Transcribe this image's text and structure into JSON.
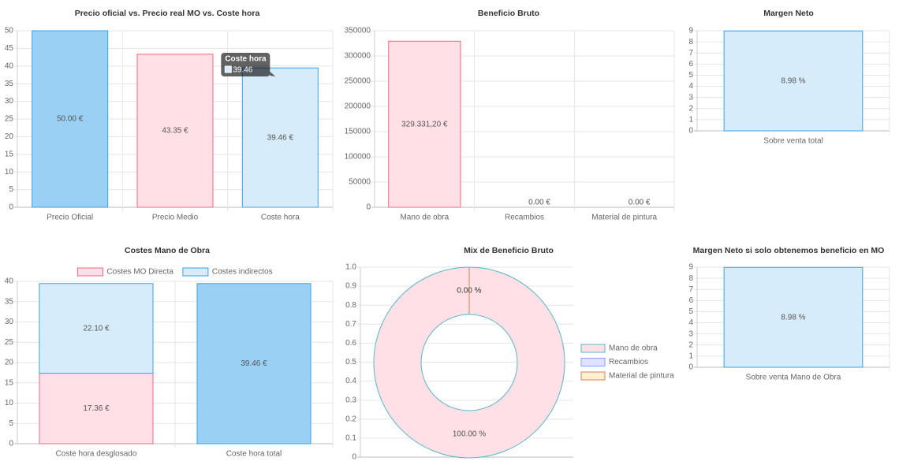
{
  "chart_data": [
    {
      "type": "bar",
      "title": "Precio oficial vs. Precio real MO vs. Coste hora",
      "categories": [
        "Precio Oficial",
        "Precio Medio",
        "Coste hora"
      ],
      "values": [
        50,
        43.35,
        39.46
      ],
      "value_labels": [
        "50.00 €",
        "43.35 €",
        "39.46 €"
      ],
      "colors": [
        "#9bd0f5",
        "#ffe0e6",
        "#d7ecfb"
      ],
      "border_colors": [
        "#36a2eb",
        "#ff6384",
        "#36a2eb"
      ],
      "ylim": [
        0,
        50
      ],
      "yticks": [
        0,
        5,
        10,
        15,
        20,
        25,
        30,
        35,
        40,
        45,
        50
      ],
      "grid": true,
      "tooltip": {
        "title": "Coste hora",
        "value": 39.46
      }
    },
    {
      "type": "bar",
      "title": "Beneficio Bruto",
      "categories": [
        "Mano de obra",
        "Recambios",
        "Material de pintura"
      ],
      "values": [
        329331.2,
        0,
        0
      ],
      "value_labels": [
        "329.331,20 €",
        "0.00 €",
        "0.00 €"
      ],
      "colors": [
        "#ffe0e6",
        "#ffe0e6",
        "#ffe0e6"
      ],
      "border_colors": [
        "#ff6384",
        "#ff6384",
        "#ff6384"
      ],
      "ylim": [
        0,
        350000
      ],
      "yticks": [
        0,
        50000,
        100000,
        150000,
        200000,
        250000,
        300000,
        350000
      ],
      "grid": true
    },
    {
      "type": "bar",
      "title": "Margen Neto",
      "categories": [
        "Sobre venta total"
      ],
      "values": [
        8.98
      ],
      "value_labels": [
        "8.98 %"
      ],
      "colors": [
        "#d7ecfb"
      ],
      "border_colors": [
        "#36a2eb"
      ],
      "ylim": [
        0,
        9
      ],
      "yticks": [
        0,
        1,
        2,
        3,
        4,
        5,
        6,
        7,
        8,
        9
      ],
      "grid": true
    },
    {
      "type": "bar",
      "title": "Costes Mano de Obra",
      "stacked": true,
      "categories": [
        "Coste hora desglosado",
        "Coste hora total"
      ],
      "series": [
        {
          "name": "Costes MO Directa",
          "color": "#ffe0e6",
          "border_color": "#ff6384",
          "values": [
            17.36,
            null
          ],
          "value_labels": [
            "17.36 €",
            null
          ]
        },
        {
          "name": "Costes indirectos",
          "color": "#d7ecfb",
          "border_color": "#36a2eb",
          "values": [
            22.1,
            null
          ],
          "value_labels": [
            "22.10 €",
            null
          ]
        },
        {
          "color": "#9bd0f5",
          "border_color": "#36a2eb",
          "values": [
            null,
            39.46
          ],
          "value_labels": [
            null,
            "39.46 €"
          ]
        }
      ],
      "ylim": [
        0,
        40
      ],
      "yticks": [
        0,
        5,
        10,
        15,
        20,
        25,
        30,
        35,
        40
      ],
      "grid": true,
      "legend": "top"
    },
    {
      "type": "doughnut",
      "title": "Mix de Beneficio Bruto",
      "categories": [
        "Mano de obra",
        "Recambios",
        "Material de pintura"
      ],
      "values": [
        100,
        0,
        0
      ],
      "value_labels": [
        "100.00 %",
        "0.00 %",
        "0.00 %"
      ],
      "colors": [
        "#ffe0e6",
        "#dfe3ff",
        "#fff0d4"
      ],
      "border_colors": [
        "#5bb5c5",
        "#8c9cff",
        "#d9824f"
      ],
      "ylim": [
        0,
        1
      ],
      "yticks": [
        0,
        0.1,
        0.2,
        0.3,
        0.4,
        0.5,
        0.6,
        0.7,
        0.8,
        0.9,
        {
          "value": 1,
          "label": "1.0"
        }
      ],
      "grid": true,
      "legend": "right"
    },
    {
      "type": "bar",
      "title": "Margen Neto si solo obtenemos beneficio en MO",
      "categories": [
        "Sobre venta Mano de Obra"
      ],
      "values": [
        8.98
      ],
      "value_labels": [
        "8.98 %"
      ],
      "colors": [
        "#d7ecfb"
      ],
      "border_colors": [
        "#36a2eb"
      ],
      "ylim": [
        0,
        9
      ],
      "yticks": [
        0,
        1,
        2,
        3,
        4,
        5,
        6,
        7,
        8,
        9
      ],
      "grid": true
    }
  ]
}
